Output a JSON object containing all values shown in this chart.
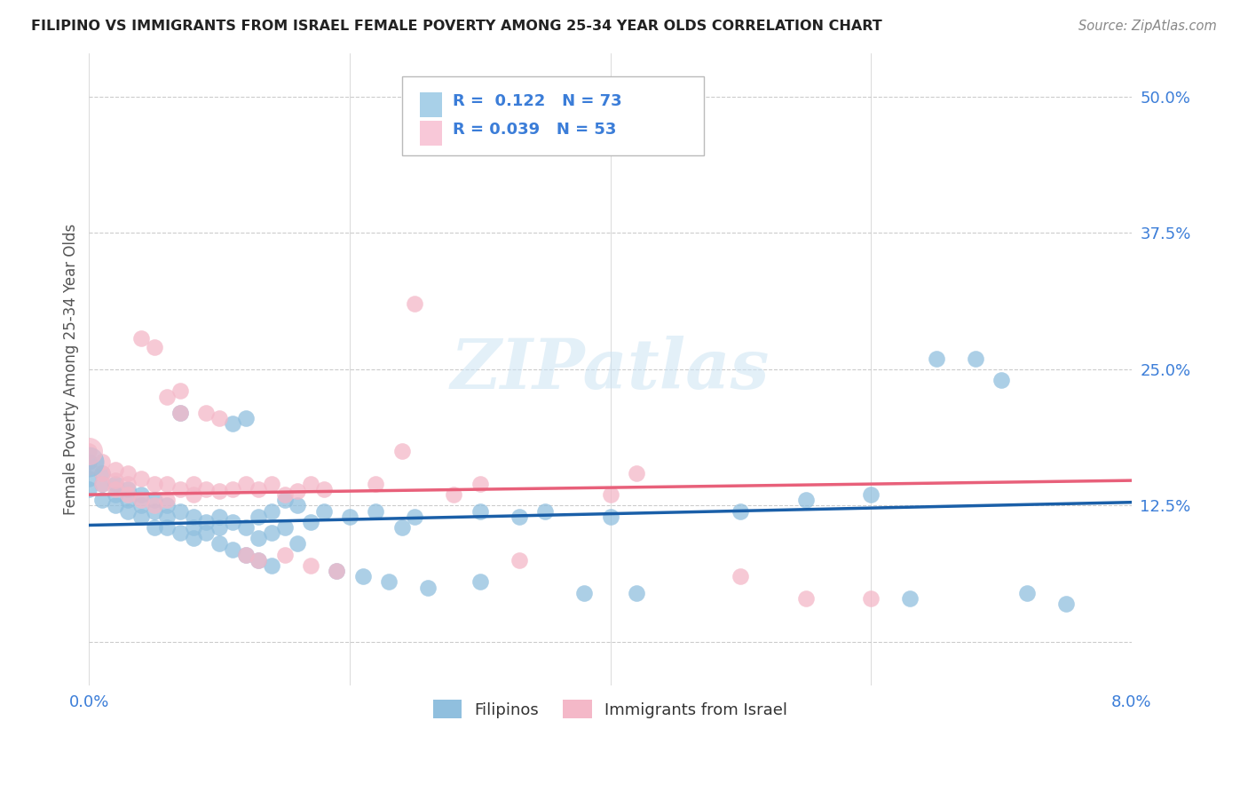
{
  "title": "FILIPINO VS IMMIGRANTS FROM ISRAEL FEMALE POVERTY AMONG 25-34 YEAR OLDS CORRELATION CHART",
  "source": "Source: ZipAtlas.com",
  "ylabel": "Female Poverty Among 25-34 Year Olds",
  "ytick_values": [
    0.0,
    0.125,
    0.25,
    0.375,
    0.5
  ],
  "ytick_labels": [
    "",
    "12.5%",
    "25.0%",
    "37.5%",
    "50.0%"
  ],
  "xlim": [
    0.0,
    0.08
  ],
  "ylim": [
    -0.04,
    0.54
  ],
  "xtick_positions": [
    0.0,
    0.02,
    0.04,
    0.06,
    0.08
  ],
  "xtick_labels": [
    "0.0%",
    "",
    "",
    "",
    "8.0%"
  ],
  "watermark": "ZIPatlas",
  "legend_labels": [
    "Filipinos",
    "Immigrants from Israel"
  ],
  "blue_color": "#90bfde",
  "pink_color": "#f4b8c8",
  "blue_line_color": "#1a5fa8",
  "pink_line_color": "#e8607a",
  "legend_blue_color": "#a8d0e8",
  "legend_pink_color": "#f8c8d8",
  "R_blue": 0.122,
  "N_blue": 73,
  "R_pink": 0.039,
  "N_pink": 53,
  "blue_line_y0": 0.107,
  "blue_line_y1": 0.128,
  "pink_line_y0": 0.135,
  "pink_line_y1": 0.148,
  "blue_points": [
    [
      0.0,
      0.165
    ],
    [
      0.0,
      0.15
    ],
    [
      0.0,
      0.14
    ],
    [
      0.001,
      0.155
    ],
    [
      0.001,
      0.145
    ],
    [
      0.001,
      0.13
    ],
    [
      0.002,
      0.145
    ],
    [
      0.002,
      0.135
    ],
    [
      0.002,
      0.125
    ],
    [
      0.003,
      0.14
    ],
    [
      0.003,
      0.13
    ],
    [
      0.003,
      0.12
    ],
    [
      0.004,
      0.135
    ],
    [
      0.004,
      0.125
    ],
    [
      0.004,
      0.115
    ],
    [
      0.005,
      0.13
    ],
    [
      0.005,
      0.12
    ],
    [
      0.005,
      0.105
    ],
    [
      0.006,
      0.125
    ],
    [
      0.006,
      0.115
    ],
    [
      0.006,
      0.105
    ],
    [
      0.007,
      0.21
    ],
    [
      0.007,
      0.12
    ],
    [
      0.007,
      0.1
    ],
    [
      0.008,
      0.115
    ],
    [
      0.008,
      0.105
    ],
    [
      0.008,
      0.095
    ],
    [
      0.009,
      0.11
    ],
    [
      0.009,
      0.1
    ],
    [
      0.01,
      0.115
    ],
    [
      0.01,
      0.105
    ],
    [
      0.01,
      0.09
    ],
    [
      0.011,
      0.2
    ],
    [
      0.011,
      0.11
    ],
    [
      0.011,
      0.085
    ],
    [
      0.012,
      0.205
    ],
    [
      0.012,
      0.105
    ],
    [
      0.012,
      0.08
    ],
    [
      0.013,
      0.115
    ],
    [
      0.013,
      0.095
    ],
    [
      0.013,
      0.075
    ],
    [
      0.014,
      0.12
    ],
    [
      0.014,
      0.1
    ],
    [
      0.014,
      0.07
    ],
    [
      0.015,
      0.13
    ],
    [
      0.015,
      0.105
    ],
    [
      0.016,
      0.125
    ],
    [
      0.016,
      0.09
    ],
    [
      0.017,
      0.11
    ],
    [
      0.018,
      0.12
    ],
    [
      0.019,
      0.065
    ],
    [
      0.02,
      0.115
    ],
    [
      0.021,
      0.06
    ],
    [
      0.022,
      0.12
    ],
    [
      0.023,
      0.055
    ],
    [
      0.024,
      0.105
    ],
    [
      0.025,
      0.115
    ],
    [
      0.026,
      0.05
    ],
    [
      0.03,
      0.12
    ],
    [
      0.03,
      0.055
    ],
    [
      0.033,
      0.115
    ],
    [
      0.035,
      0.12
    ],
    [
      0.038,
      0.045
    ],
    [
      0.04,
      0.115
    ],
    [
      0.042,
      0.045
    ],
    [
      0.05,
      0.12
    ],
    [
      0.055,
      0.13
    ],
    [
      0.06,
      0.135
    ],
    [
      0.063,
      0.04
    ],
    [
      0.065,
      0.26
    ],
    [
      0.068,
      0.26
    ],
    [
      0.07,
      0.24
    ],
    [
      0.072,
      0.045
    ],
    [
      0.075,
      0.035
    ]
  ],
  "pink_points": [
    [
      0.0,
      0.175
    ],
    [
      0.0,
      0.16
    ],
    [
      0.001,
      0.165
    ],
    [
      0.001,
      0.155
    ],
    [
      0.001,
      0.145
    ],
    [
      0.002,
      0.158
    ],
    [
      0.002,
      0.148
    ],
    [
      0.002,
      0.14
    ],
    [
      0.003,
      0.155
    ],
    [
      0.003,
      0.145
    ],
    [
      0.003,
      0.135
    ],
    [
      0.004,
      0.278
    ],
    [
      0.004,
      0.15
    ],
    [
      0.004,
      0.13
    ],
    [
      0.005,
      0.27
    ],
    [
      0.005,
      0.145
    ],
    [
      0.005,
      0.125
    ],
    [
      0.006,
      0.225
    ],
    [
      0.006,
      0.145
    ],
    [
      0.006,
      0.13
    ],
    [
      0.007,
      0.23
    ],
    [
      0.007,
      0.21
    ],
    [
      0.007,
      0.14
    ],
    [
      0.008,
      0.145
    ],
    [
      0.008,
      0.135
    ],
    [
      0.009,
      0.21
    ],
    [
      0.009,
      0.14
    ],
    [
      0.01,
      0.205
    ],
    [
      0.01,
      0.138
    ],
    [
      0.011,
      0.14
    ],
    [
      0.012,
      0.145
    ],
    [
      0.012,
      0.08
    ],
    [
      0.013,
      0.14
    ],
    [
      0.013,
      0.075
    ],
    [
      0.014,
      0.145
    ],
    [
      0.015,
      0.135
    ],
    [
      0.015,
      0.08
    ],
    [
      0.016,
      0.138
    ],
    [
      0.017,
      0.145
    ],
    [
      0.017,
      0.07
    ],
    [
      0.018,
      0.14
    ],
    [
      0.019,
      0.065
    ],
    [
      0.022,
      0.145
    ],
    [
      0.024,
      0.175
    ],
    [
      0.025,
      0.31
    ],
    [
      0.028,
      0.135
    ],
    [
      0.03,
      0.145
    ],
    [
      0.033,
      0.075
    ],
    [
      0.04,
      0.135
    ],
    [
      0.042,
      0.155
    ],
    [
      0.05,
      0.06
    ],
    [
      0.055,
      0.04
    ],
    [
      0.06,
      0.04
    ]
  ],
  "background_color": "#ffffff",
  "grid_color": "#cccccc",
  "tick_color": "#3b7dd8",
  "title_color": "#222222",
  "source_color": "#888888",
  "ylabel_color": "#555555"
}
